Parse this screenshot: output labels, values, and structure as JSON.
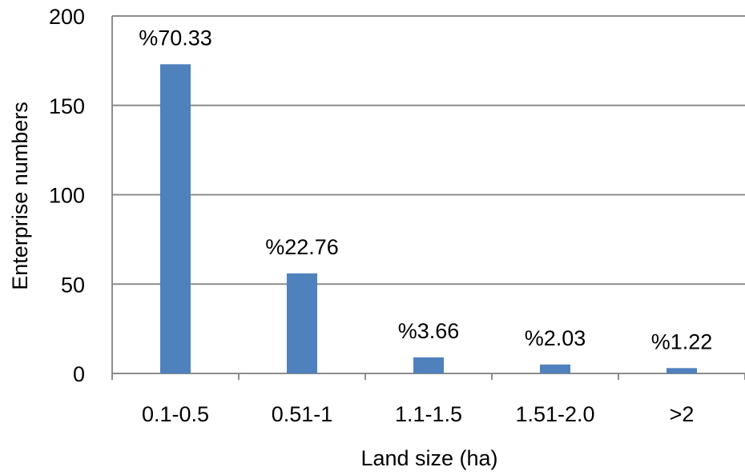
{
  "chart_data": {
    "type": "bar",
    "title": "",
    "xlabel": "Land size (ha)",
    "ylabel": "Enterprise numbers",
    "categories": [
      "0.1-0.5",
      "0.51-1",
      "1.1-1.5",
      "1.51-2.0",
      ">2"
    ],
    "values": [
      173,
      56,
      9,
      5,
      3
    ],
    "data_labels": [
      "%70.33",
      "%22.76",
      "%3.66",
      "%2.03",
      "%1.22"
    ],
    "ylim": [
      0,
      200
    ],
    "yticks": [
      0,
      50,
      100,
      150,
      200
    ],
    "grid": true,
    "legend": "none",
    "colors": {
      "bar": "#4f81bd",
      "grid": "#8c8c8c",
      "axis": "#8c8c8c"
    }
  }
}
